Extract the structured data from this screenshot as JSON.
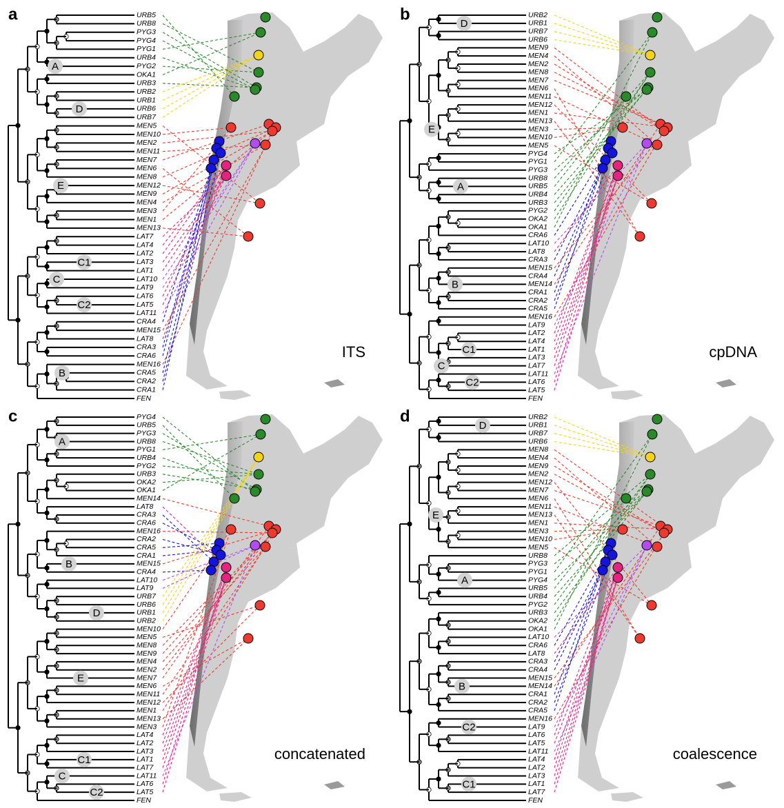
{
  "panels": [
    {
      "letter": "a",
      "label": "ITS",
      "tips": [
        "URB5",
        "URB8",
        "PYG3",
        "PYG4",
        "PYG1",
        "URB4",
        "PYG2",
        "OKA1",
        "URB3",
        "URB2",
        "URB1",
        "URB6",
        "URB7",
        "MEN5",
        "MEN10",
        "MEN2",
        "MEN11",
        "MEN7",
        "MEN6",
        "MEN8",
        "MEN12",
        "MEN9",
        "MEN4",
        "MEN3",
        "MEN1",
        "MEN13",
        "LAT7",
        "LAT4",
        "LAT2",
        "LAT3",
        "LAT1",
        "LAT10",
        "LAT9",
        "LAT6",
        "LAT5",
        "LAT11",
        "CRA4",
        "MEN15",
        "LAT8",
        "CRA3",
        "CRA6",
        "MEN16",
        "CRA5",
        "CRA2",
        "CRA1",
        "FEN"
      ],
      "clades": [
        "A",
        "D",
        "E",
        "C1",
        "C",
        "C2",
        "B"
      ]
    },
    {
      "letter": "b",
      "label": "cpDNA",
      "tips": [
        "URB2",
        "URB1",
        "URB7",
        "URB6",
        "MEN9",
        "MEN4",
        "MEN2",
        "MEN8",
        "MEN7",
        "MEN6",
        "MEN11",
        "MEN12",
        "MEN1",
        "MEN13",
        "MEN3",
        "MEN10",
        "MEN5",
        "PYG4",
        "PYG1",
        "PYG3",
        "URB8",
        "URB5",
        "URB4",
        "URB3",
        "PYG2",
        "OKA2",
        "OKA1",
        "CRA6",
        "LAT10",
        "LAT8",
        "CRA3",
        "MEN15",
        "CRA4",
        "MEN14",
        "CRA1",
        "CRA2",
        "CRA5",
        "MEN16",
        "LAT9",
        "LAT2",
        "LAT4",
        "LAT1",
        "LAT3",
        "LAT7",
        "LAT11",
        "LAT6",
        "LAT5",
        "FEN"
      ],
      "clades": [
        "D",
        "E",
        "A",
        "B",
        "C1",
        "C",
        "C2"
      ]
    },
    {
      "letter": "c",
      "label": "concatenated",
      "tips": [
        "PYG4",
        "URB5",
        "PYG3",
        "URB8",
        "PYG1",
        "URB4",
        "PYG2",
        "URB3",
        "OKA2",
        "OKA1",
        "MEN14",
        "LAT8",
        "CRA3",
        "CRA6",
        "MEN16",
        "CRA2",
        "CRA5",
        "CRA1",
        "MEN15",
        "CRA4",
        "LAT10",
        "LAT9",
        "URB7",
        "URB6",
        "URB1",
        "URB2",
        "MEN10",
        "MEN5",
        "MEN8",
        "MEN9",
        "MEN4",
        "MEN2",
        "MEN7",
        "MEN6",
        "MEN11",
        "MEN12",
        "MEN1",
        "MEN13",
        "MEN3",
        "LAT4",
        "LAT2",
        "LAT3",
        "LAT1",
        "LAT7",
        "LAT11",
        "LAT6",
        "LAT5",
        "FEN"
      ],
      "clades": [
        "A",
        "B",
        "D",
        "E",
        "C1",
        "C",
        "C2"
      ]
    },
    {
      "letter": "d",
      "label": "coalescence",
      "tips": [
        "URB2",
        "URB1",
        "URB7",
        "URB6",
        "MEN8",
        "MEN4",
        "MEN9",
        "MEN2",
        "MEN12",
        "MEN7",
        "MEN6",
        "MEN11",
        "MEN13",
        "MEN1",
        "MEN3",
        "MEN10",
        "MEN5",
        "URB8",
        "PYG3",
        "PYG1",
        "PYG4",
        "URB5",
        "URB4",
        "PYG2",
        "URB3",
        "OKA2",
        "OKA1",
        "LAT10",
        "CRA6",
        "LAT8",
        "CRA3",
        "CRA4",
        "MEN15",
        "MEN14",
        "CRA1",
        "CRA2",
        "CRA5",
        "MEN16",
        "LAT9",
        "LAT6",
        "LAT5",
        "LAT11",
        "LAT4",
        "LAT2",
        "LAT3",
        "LAT1",
        "LAT7",
        "FEN"
      ],
      "clades": [
        "D",
        "E",
        "A",
        "B",
        "C2",
        "C1"
      ]
    }
  ]
}
